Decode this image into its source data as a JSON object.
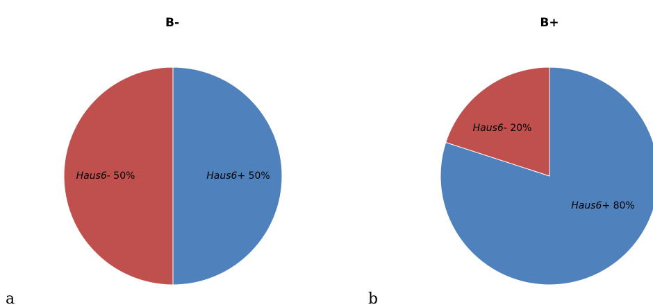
{
  "chart_data": [
    {
      "type": "pie",
      "title": "B-",
      "panel_label": "a",
      "slices": [
        {
          "gene": "Haus6",
          "sign": "+",
          "value": 50,
          "percent_text": "50%",
          "color": "#4f81bd"
        },
        {
          "gene": "Haus6",
          "sign": "-",
          "value": 50,
          "percent_text": "50%",
          "color": "#c0504d"
        }
      ]
    },
    {
      "type": "pie",
      "title": "B+",
      "panel_label": "b",
      "slices": [
        {
          "gene": "Haus6",
          "sign": "+",
          "value": 80,
          "percent_text": "80%",
          "color": "#4f81bd"
        },
        {
          "gene": "Haus6",
          "sign": "-",
          "value": 20,
          "percent_text": "20%",
          "color": "#c0504d"
        }
      ]
    }
  ]
}
